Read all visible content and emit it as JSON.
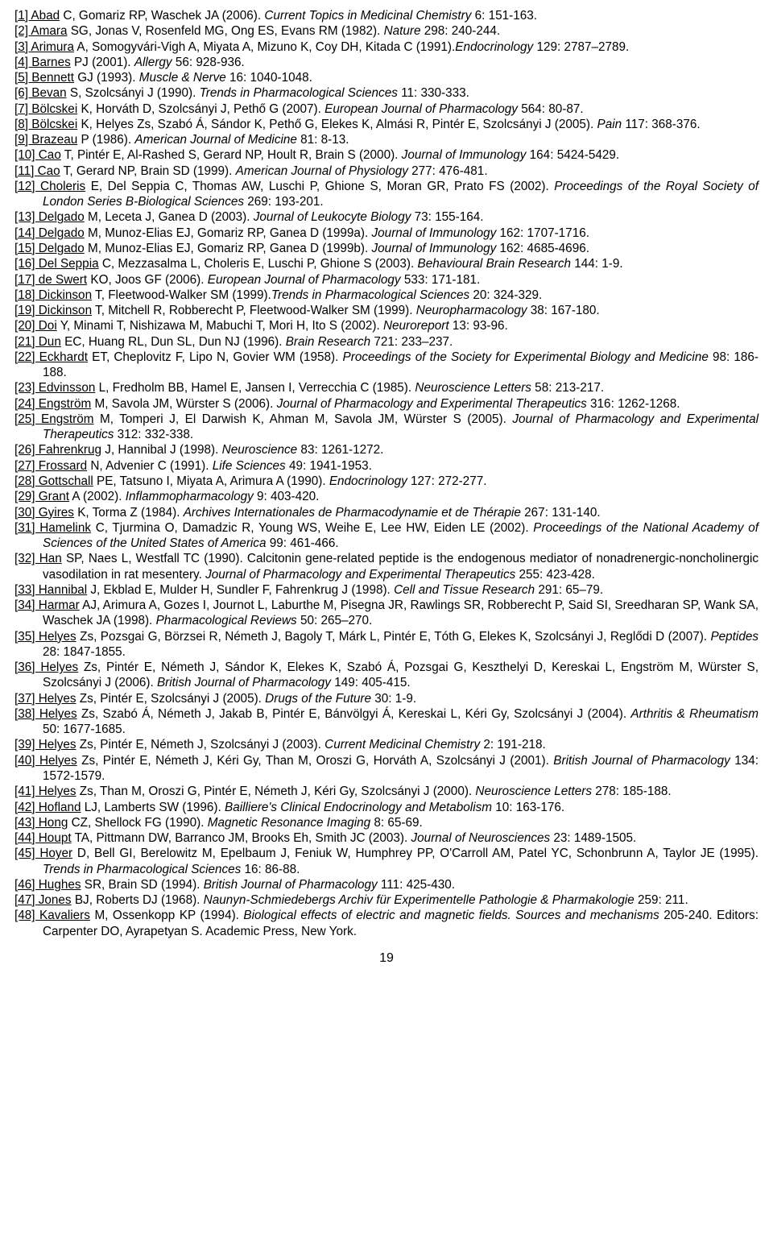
{
  "page_number": "19",
  "refs": [
    {
      "u": "[1] Abad",
      "rest": " C, Gomariz RP, Waschek JA (2006). ",
      "i": "Current Topics in Medicinal Chemistry",
      "tail": " 6: 151-163."
    },
    {
      "u": "[2] Amara",
      "rest": " SG, Jonas V, Rosenfeld MG, Ong ES, Evans RM (1982). ",
      "i": "Nature",
      "tail": " 298: 240-244."
    },
    {
      "u": "[3] Arimura",
      "rest": " A, Somogyvári-Vigh A, Miyata A, Mizuno K, Coy DH, Kitada C (1991).",
      "i": "Endocrinology",
      "tail": " 129: 2787–2789."
    },
    {
      "u": "[4] Barnes",
      "rest": " PJ (2001). ",
      "i": "Allergy",
      "tail": " 56: 928-936."
    },
    {
      "u": "[5] Bennett",
      "rest": " GJ (1993). ",
      "i": "Muscle & Nerve",
      "tail": " 16: 1040-1048."
    },
    {
      "u": "[6] Bevan",
      "rest": " S, Szolcsányi J (1990). ",
      "i": "Trends in Pharmacological Sciences",
      "tail": " 11: 330-333."
    },
    {
      "u": "[7] Bölcskei",
      "rest": " K, Horváth D, Szolcsányi J, Pethő G (2007). ",
      "i": "European Journal of Pharmacology",
      "tail": " 564: 80-87."
    },
    {
      "u": "[8] Bölcskei",
      "rest": " K, Helyes Zs, Szabó Á, Sándor K, Pethő G, Elekes K, Almási R, Pintér E, Szolcsányi J (2005). ",
      "i": "Pain",
      "tail": " 117: 368-376."
    },
    {
      "u": "[9] Brazeau",
      "rest": " P (1986). ",
      "i": "American Journal of Medicine",
      "tail": " 81: 8-13."
    },
    {
      "u": "[10] Cao",
      "rest": " T, Pintér E, Al-Rashed S, Gerard NP, Hoult R, Brain S (2000). ",
      "i": "Journal of Immunology",
      "tail": " 164: 5424-5429."
    },
    {
      "u": "[11] Cao",
      "rest": " T, Gerard NP, Brain SD (1999). ",
      "i": "American Journal of Physiology",
      "tail": " 277: 476-481."
    },
    {
      "u": "[12] Choleris",
      "rest": " E, Del Seppia C, Thomas AW, Luschi P, Ghione S, Moran GR, Prato FS (2002). ",
      "i": "Proceedings of the Royal Society of London Series B-Biological Sciences",
      "tail": " 269: 193-201."
    },
    {
      "u": "[13] Delgado",
      "rest": " M, Leceta J, Ganea D (2003). ",
      "i": "Journal of Leukocyte Biology",
      "tail": " 73: 155-164."
    },
    {
      "u": "[14] Delgado",
      "rest": " M, Munoz-Elias EJ, Gomariz RP, Ganea D (1999a). ",
      "i": "Journal of Immunology",
      "tail": " 162: 1707-1716."
    },
    {
      "u": "[15] Delgado",
      "rest": " M, Munoz-Elias EJ, Gomariz RP, Ganea D (1999b). ",
      "i": "Journal of Immunology",
      "tail": " 162: 4685-4696."
    },
    {
      "u": "[16] Del Seppia",
      "rest": " C, Mezzasalma L, Choleris E, Luschi P, Ghione S (2003). ",
      "i": "Behavioural Brain Research",
      "tail": " 144: 1-9."
    },
    {
      "u": "[17] de Swert",
      "rest": " KO, Joos GF (2006). ",
      "i": "European Journal of Pharmacology",
      "tail": " 533: 171-181."
    },
    {
      "u": "[18] Dickinson",
      "rest": " T, Fleetwood-Walker SM (1999).",
      "i": "Trends in Pharmacological Sciences",
      "tail": " 20: 324-329."
    },
    {
      "u": "[19] Dickinson",
      "rest": " T, Mitchell R, Robberecht P, Fleetwood-Walker SM (1999). ",
      "i": "Neuropharmacology",
      "tail": " 38: 167-180."
    },
    {
      "u": "[20] Doi",
      "rest": " Y, Minami T, Nishizawa M, Mabuchi T, Mori H, Ito S (2002). ",
      "i": "Neuroreport",
      "tail": " 13: 93-96."
    },
    {
      "u": "[21] Dun",
      "rest": " EC, Huang RL, Dun SL, Dun NJ (1996). ",
      "i": "Brain Research",
      "tail": " 721: 233–237."
    },
    {
      "u": "[22] Eckhardt",
      "rest": " ET, Cheplovitz F, Lipo N, Govier WM (1958). ",
      "i": "Proceedings of the Society for Experimental Biology and Medicine",
      "tail": " 98: 186-188."
    },
    {
      "u": "[23] Edvinsson",
      "rest": " L, Fredholm BB, Hamel E, Jansen I, Verrecchia C (1985). ",
      "i": "Neuroscience Letters",
      "tail": " 58: 213-217."
    },
    {
      "u": "[24] Engström",
      "rest": " M, Savola JM, Würster S (2006). ",
      "i": "Journal of Pharmacology and Experimental Therapeutics",
      "tail": " 316: 1262-1268."
    },
    {
      "u": "[25] Engström",
      "rest": " M, Tomperi J, El Darwish K, Ahman M, Savola JM, Würster S (2005). ",
      "i": "Journal of Pharmacology and Experimental Therapeutics",
      "tail": " 312: 332-338."
    },
    {
      "u": "[26] Fahrenkrug",
      "rest": " J, Hannibal J (1998). ",
      "i": "Neuroscience",
      "tail": " 83: 1261-1272."
    },
    {
      "u": "[27] Frossard",
      "rest": " N, Advenier C (1991). ",
      "i": "Life Sciences",
      "tail": " 49: 1941-1953."
    },
    {
      "u": "[28] Gottschall",
      "rest": " PE, Tatsuno I, Miyata A, Arimura A (1990). ",
      "i": "Endocrinology",
      "tail": " 127: 272-277."
    },
    {
      "u": "[29] Grant",
      "rest": " A (2002). ",
      "i": "Inflammopharmacology",
      "tail": " 9: 403-420."
    },
    {
      "u": "[30] Gyires",
      "rest": " K, Torma Z (1984). ",
      "i": "Archives Internationales de Pharmacodynamie et de Thérapie",
      "tail": " 267: 131-140."
    },
    {
      "u": "[31] Hamelink",
      "rest": " C, Tjurmina O, Damadzic R, Young WS, Weihe E, Lee HW, Eiden LE (2002). ",
      "i": "Proceedings of the National Academy of Sciences of the United States of America",
      "tail": " 99: 461-466."
    },
    {
      "u": "[32] Han",
      "rest": " SP, Naes L, Westfall TC (1990). Calcitonin gene-related peptide is the endogenous mediator of nonadrenergic-noncholinergic vasodilation in rat mesentery. ",
      "i": "Journal of Pharmacology and Experimental Therapeutics",
      "tail": " 255: 423-428."
    },
    {
      "u": "[33] Hannibal",
      "rest": " J, Ekblad E, Mulder H, Sundler F, Fahrenkrug J (1998). ",
      "i": "Cell and Tissue Research",
      "tail": " 291: 65–79."
    },
    {
      "u": "[34] Harmar",
      "rest": " AJ, Arimura A, Gozes I, Journot L, Laburthe M, Pisegna JR, Rawlings SR, Robberecht P, Said SI, Sreedharan SP, Wank SA, Waschek JA (1998). ",
      "i": "Pharmacological Reviews",
      "tail": " 50: 265–270."
    },
    {
      "u": "[35] Helyes",
      "rest": " Zs, Pozsgai G, Börzsei R, Németh J, Bagoly T, Márk L, Pintér E, Tóth G, Elekes K, Szolcsányi J, Reglődi D (2007). ",
      "i": "Peptides",
      "tail": " 28: 1847-1855."
    },
    {
      "u": "[36] Helyes",
      "rest": " Zs, Pintér E, Németh J, Sándor K, Elekes K, Szabó Á, Pozsgai G, Keszthelyi D, Kereskai L, Engström M, Würster S, Szolcsányi J (2006). ",
      "i": "British Journal of Pharmacology",
      "tail": " 149: 405-415."
    },
    {
      "u": "[37] Helyes",
      "rest": " Zs, Pintér E, Szolcsányi J (2005). ",
      "i": "Drugs of the Future",
      "tail": " 30: 1-9."
    },
    {
      "u": "[38] Helyes",
      "rest": " Zs, Szabó Á, Németh J, Jakab B, Pintér E, Bánvölgyi Á, Kereskai L, Kéri Gy, Szolcsányi J (2004). ",
      "i": "Arthritis & Rheumatism",
      "tail": " 50: 1677-1685."
    },
    {
      "u": "[39] Helyes",
      "rest": " Zs, Pintér E, Németh J, Szolcsányi J (2003). ",
      "i": "Current Medicinal Chemistry",
      "tail": " 2: 191-218."
    },
    {
      "u": "[40] Helyes",
      "rest": " Zs, Pintér E, Németh J, Kéri Gy, Than M, Oroszi G, Horváth A, Szolcsányi J (2001). ",
      "i": "British Journal of Pharmacology",
      "tail": " 134: 1572-1579."
    },
    {
      "u": "[41] Helyes",
      "rest": " Zs, Than M, Oroszi G, Pintér E, Németh J, Kéri Gy, Szolcsányi J (2000). ",
      "i": "Neuroscience Letters",
      "tail": " 278: 185-188."
    },
    {
      "u": "[42] Hofland",
      "rest": " LJ, Lamberts SW (1996). ",
      "i": "Bailliere's Clinical Endocrinology and Metabolism",
      "tail": " 10: 163-176."
    },
    {
      "u": "[43] Hong",
      "rest": " CZ, Shellock FG (1990). ",
      "i": "Magnetic Resonance Imaging",
      "tail": " 8: 65-69."
    },
    {
      "u": "[44] Houpt",
      "rest": " TA, Pittmann DW, Barranco JM, Brooks Eh, Smith JC (2003). ",
      "i": "Journal of Neurosciences",
      "tail": " 23: 1489-1505."
    },
    {
      "u": "[45] Hoyer",
      "rest": " D, Bell GI, Berelowitz M, Epelbaum J, Feniuk W, Humphrey PP, O'Carroll AM, Patel YC, Schonbrunn A, Taylor JE (1995). ",
      "i": "Trends in Pharmacological Sciences",
      "tail": " 16: 86-88."
    },
    {
      "u": "[46] Hughes",
      "rest": " SR, Brain SD (1994). ",
      "i": "British Journal of Pharmacology",
      "tail": " 111: 425-430."
    },
    {
      "u": "[47] Jones",
      "rest": " BJ, Roberts DJ (1968). ",
      "i": "Naunyn-Schmiedebergs Archiv für Experimentelle Pathologie & Pharmakologie",
      "tail": " 259: 211."
    },
    {
      "u": "[48] Kavaliers",
      "rest": " M, Ossenkopp KP (1994). ",
      "i": "Biological effects of electric and magnetic fields. Sources and mechanisms",
      "tail": " 205-240. Editors: Carpenter DO, Ayrapetyan S. Academic Press, New York."
    }
  ]
}
